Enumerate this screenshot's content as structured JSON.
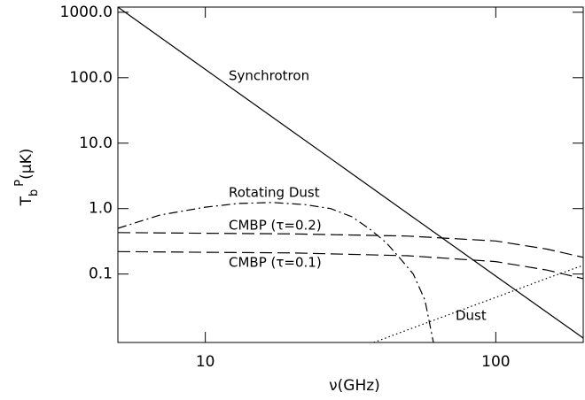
{
  "chart_data": {
    "type": "line",
    "xlabel": "ν(GHz)",
    "ylabel": {
      "main": "T",
      "sub": "b",
      "sup": "P",
      "unit": "(μK)"
    },
    "xscale": "log",
    "yscale": "log",
    "xlim": [
      5,
      200
    ],
    "ylim": [
      0.009,
      1200
    ],
    "xticks": [
      10,
      100
    ],
    "yticks": [
      {
        "value": 1000,
        "label": "1000.0"
      },
      {
        "value": 100,
        "label": "100.0"
      },
      {
        "value": 10,
        "label": "10.0"
      },
      {
        "value": 1,
        "label": "1.0"
      },
      0.1
    ],
    "series": [
      {
        "name": "Synchrotron",
        "color": "#000000",
        "style": "solid",
        "x": [
          5,
          10,
          20,
          50,
          100,
          200
        ],
        "values": [
          1200,
          134,
          15.0,
          0.83,
          0.093,
          0.0105
        ]
      },
      {
        "name": "Rotating Dust",
        "color": "#000000",
        "style": "dashdot",
        "x": [
          5,
          7,
          10,
          13,
          17,
          22,
          27,
          32,
          37,
          42,
          47,
          52,
          57,
          61
        ],
        "values": [
          0.5,
          0.8,
          1.05,
          1.2,
          1.24,
          1.15,
          1.0,
          0.75,
          0.48,
          0.3,
          0.17,
          0.1,
          0.04,
          0.009
        ]
      },
      {
        "name": "CMBP (τ=0.2)",
        "color": "#000000",
        "style": "dashed",
        "x": [
          5,
          10,
          20,
          50,
          100,
          150,
          200
        ],
        "values": [
          0.43,
          0.42,
          0.41,
          0.38,
          0.32,
          0.24,
          0.18
        ]
      },
      {
        "name": "CMBP (τ=0.1)",
        "color": "#000000",
        "style": "dashed",
        "x": [
          5,
          10,
          20,
          50,
          100,
          150,
          200
        ],
        "values": [
          0.22,
          0.215,
          0.21,
          0.19,
          0.155,
          0.115,
          0.085
        ]
      },
      {
        "name": "Dust",
        "color": "#000000",
        "style": "dotted",
        "x": [
          38,
          50,
          100,
          150,
          200
        ],
        "values": [
          0.009,
          0.0142,
          0.044,
          0.086,
          0.136
        ]
      }
    ]
  }
}
